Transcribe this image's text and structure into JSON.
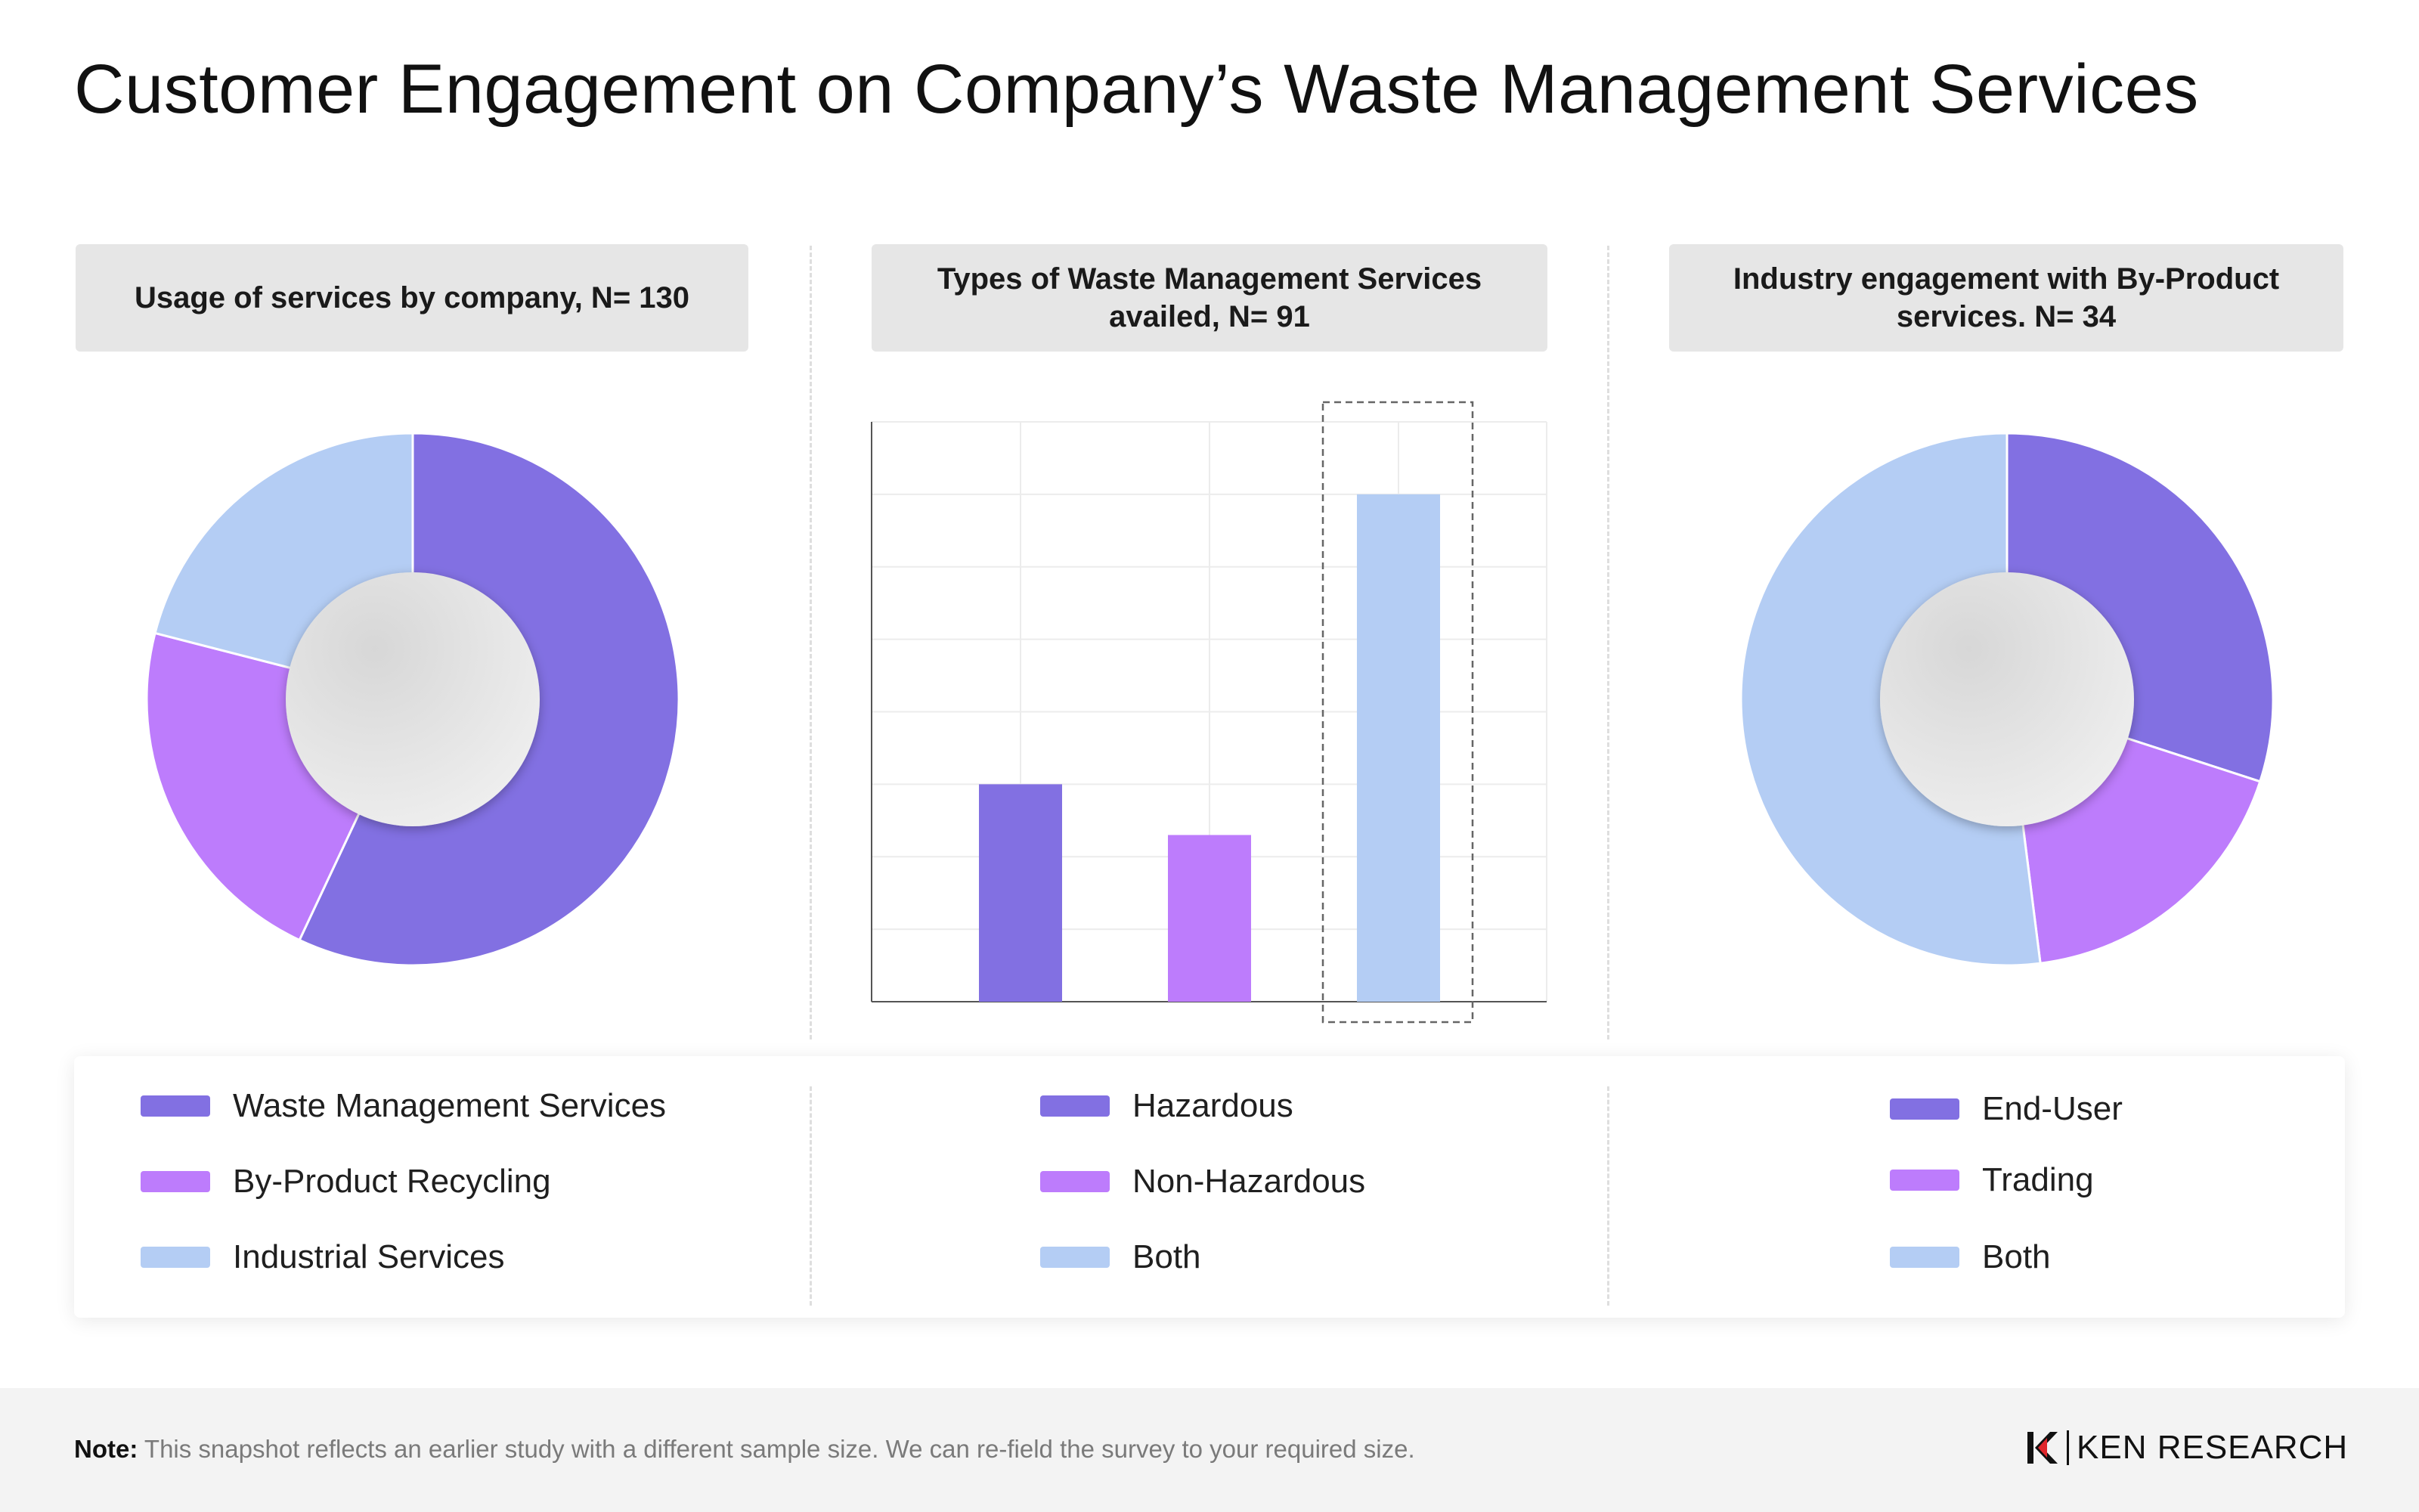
{
  "title": "Customer Engagement on Company’s Waste Management Services",
  "panels": [
    {
      "heading": "Usage of services by company, N= 130"
    },
    {
      "heading": "Types of Waste Management Services availed, N= 91"
    },
    {
      "heading": "Industry engagement with By-Product services. N= 34"
    }
  ],
  "chart_data": [
    {
      "type": "pie",
      "title": "Usage of services by company, N= 130",
      "categories": [
        "Waste Management Services",
        "By-Product Recycling",
        "Industrial Services"
      ],
      "values": [
        57,
        22,
        21
      ],
      "colors": [
        "#8270e2",
        "#bd7cfc",
        "#b4cdf4"
      ]
    },
    {
      "type": "bar",
      "title": "Types of Waste Management Services availed, N= 91",
      "categories": [
        "Hazardous",
        "Non-Hazardous",
        "Both"
      ],
      "values": [
        30,
        23,
        70
      ],
      "ylim": [
        0,
        80
      ],
      "grid": true,
      "highlight": "Both",
      "colors": [
        "#8270e2",
        "#bd7cfc",
        "#b4cdf4"
      ]
    },
    {
      "type": "pie",
      "title": "Industry engagement with By-Product services. N= 34",
      "categories": [
        "End-User",
        "Trading",
        "Both"
      ],
      "values": [
        30,
        18,
        52
      ],
      "colors": [
        "#8270e2",
        "#bd7cfc",
        "#b4cdf4"
      ]
    }
  ],
  "legends": [
    {
      "items": [
        {
          "label": "Waste Management Services",
          "color": "#8270e2"
        },
        {
          "label": "By-Product Recycling",
          "color": "#bd7cfc"
        },
        {
          "label": "Industrial Services",
          "color": "#b4cdf4"
        }
      ]
    },
    {
      "items": [
        {
          "label": "Hazardous",
          "color": "#8270e2"
        },
        {
          "label": "Non-Hazardous",
          "color": "#bd7cfc"
        },
        {
          "label": "Both",
          "color": "#b4cdf4"
        }
      ]
    },
    {
      "items": [
        {
          "label": "End-User",
          "color": "#8270e2"
        },
        {
          "label": "Trading",
          "color": "#bd7cfc"
        },
        {
          "label": "Both",
          "color": "#b4cdf4"
        }
      ]
    }
  ],
  "footer": {
    "note_label": "Note:",
    "note_text": "This snapshot reflects an earlier study with a different sample size. We can re-field the survey to your required size.",
    "brand": "KEN RESEARCH"
  }
}
